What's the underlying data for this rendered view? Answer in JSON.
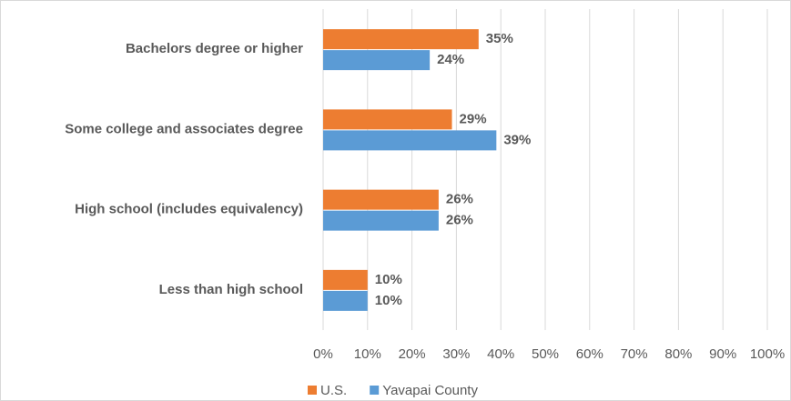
{
  "chart_data": {
    "type": "bar",
    "orientation": "horizontal",
    "categories": [
      "Bachelors degree or higher",
      "Some college and associates degree",
      "High school (includes equivalency)",
      "Less than high school"
    ],
    "series": [
      {
        "name": "U.S.",
        "color": "#ed7d31",
        "values": [
          35,
          29,
          26,
          10
        ],
        "value_labels": [
          "35%",
          "29%",
          "26%",
          "10%"
        ]
      },
      {
        "name": "Yavapai County",
        "color": "#5b9bd5",
        "values": [
          24,
          39,
          26,
          10
        ],
        "value_labels": [
          "24%",
          "39%",
          "26%",
          "10%"
        ]
      }
    ],
    "xlim": [
      0,
      100
    ],
    "xticks": [
      {
        "value": 0,
        "label": "0%"
      },
      {
        "value": 10,
        "label": "10%"
      },
      {
        "value": 20,
        "label": "20%"
      },
      {
        "value": 30,
        "label": "30%"
      },
      {
        "value": 40,
        "label": "40%"
      },
      {
        "value": 50,
        "label": "50%"
      },
      {
        "value": 60,
        "label": "60%"
      },
      {
        "value": 70,
        "label": "70%"
      },
      {
        "value": 80,
        "label": "80%"
      },
      {
        "value": 90,
        "label": "90%"
      },
      {
        "value": 100,
        "label": "100%"
      }
    ],
    "grid": true,
    "legend": "bottom"
  }
}
